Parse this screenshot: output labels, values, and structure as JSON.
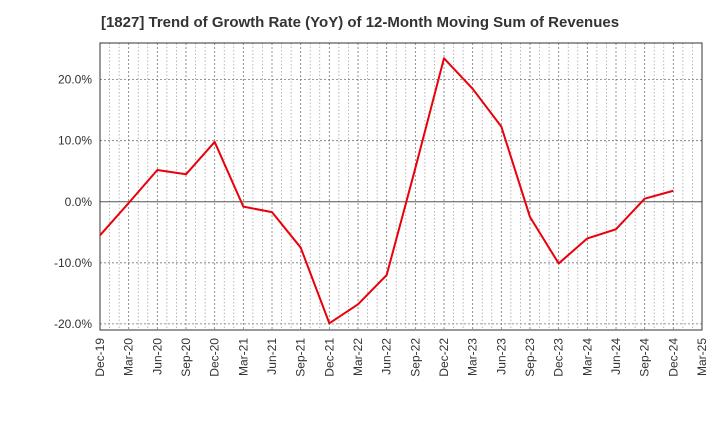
{
  "chart_data": {
    "type": "line",
    "title": "[1827]  Trend of Growth Rate (YoY) of 12-Month Moving Sum of Revenues",
    "xlabel": "",
    "ylabel": "",
    "x_ticks": [
      "Dec-19",
      "Mar-20",
      "Jun-20",
      "Sep-20",
      "Dec-20",
      "Mar-21",
      "Jun-21",
      "Sep-21",
      "Dec-21",
      "Mar-22",
      "Jun-22",
      "Sep-22",
      "Dec-22",
      "Mar-23",
      "Jun-23",
      "Sep-23",
      "Dec-23",
      "Mar-24",
      "Jun-24",
      "Sep-24",
      "Dec-24",
      "Mar-25"
    ],
    "y_ticks": [
      "20.0%",
      "10.0%",
      "0.0%",
      "-10.0%",
      "-20.0%"
    ],
    "y_tick_values": [
      20,
      10,
      0,
      -10,
      -20
    ],
    "ylim": [
      -21,
      26
    ],
    "grid": true,
    "series": [
      {
        "color": "#e8000b",
        "x": [
          "Dec-19",
          "Mar-20",
          "Jun-20",
          "Sep-20",
          "Dec-20",
          "Mar-21",
          "Jun-21",
          "Sep-21",
          "Dec-21",
          "Mar-22",
          "Jun-22",
          "Sep-22",
          "Dec-22",
          "Mar-23",
          "Jun-23",
          "Sep-23",
          "Dec-23",
          "Mar-24",
          "Jun-24",
          "Sep-24",
          "Dec-24"
        ],
        "values": [
          -5.5,
          -0.2,
          5.2,
          4.5,
          9.8,
          -0.8,
          -1.7,
          -7.5,
          -19.9,
          -16.8,
          -12.0,
          5.5,
          23.5,
          18.5,
          12.3,
          -2.5,
          -10.1,
          -6.0,
          -4.5,
          0.5,
          1.8
        ]
      }
    ]
  }
}
